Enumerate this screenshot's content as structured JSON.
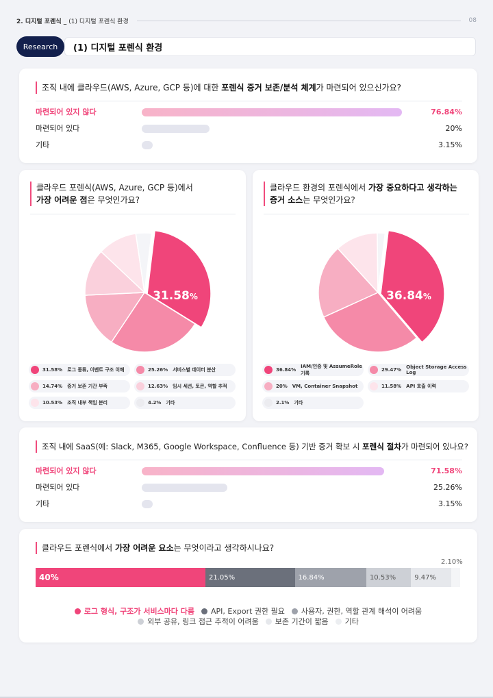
{
  "header": {
    "section": "2. 디지털 포렌식 _",
    "subsection": "(1) 디지털 포렌식 환경",
    "page": "08"
  },
  "title_row": {
    "pill": "Research",
    "title": "(1) 디지털 포렌식 환경"
  },
  "q1": {
    "question_pre": "조직 내에 클라우드(AWS, Azure, GCP 등)에 대한 ",
    "question_bold": "포렌식 증거 보존/분석 체계",
    "question_post": "가 마련되어 있으신가요?",
    "rows": [
      {
        "label": "마련되어 있지 않다",
        "value": 76.84,
        "pct": "76.84%",
        "highlight": true
      },
      {
        "label": "마련되어 있다",
        "value": 20,
        "pct": "20%",
        "highlight": false
      },
      {
        "label": "기타",
        "value": 3.15,
        "pct": "3.15%",
        "highlight": false
      }
    ]
  },
  "q2": {
    "line1": "클라우드 포렌식(AWS, Azure, GCP 등)에서",
    "line2_bold": "가장 어려운 점",
    "line2_post": "은 무엇인가요?",
    "center_value": "31.58",
    "center_unit": "%",
    "slices": [
      {
        "label": "로그 종류, 이벤트 구조 이해",
        "value": 31.58,
        "pct": "31.58%",
        "color": "#f0457a"
      },
      {
        "label": "서비스별 데이터 분산",
        "value": 25.26,
        "pct": "25.26%",
        "color": "#f58aa8"
      },
      {
        "label": "증거 보존 기간 부족",
        "value": 14.74,
        "pct": "14.74%",
        "color": "#f7aec2"
      },
      {
        "label": "임시 세션, 토큰, 역할 추적",
        "value": 12.63,
        "pct": "12.63%",
        "color": "#fad0dc"
      },
      {
        "label": "조직 내부 책임 분리",
        "value": 10.53,
        "pct": "10.53%",
        "color": "#fde4eb"
      },
      {
        "label": "기타",
        "value": 4.2,
        "pct": "4.2%",
        "color": "#f4f5f8"
      }
    ]
  },
  "q3": {
    "line1_pre": "클라우드 환경의 포렌식에서 ",
    "line1_bold": "가장 중요하다고 생각하는",
    "line2_bold": "증거 소스",
    "line2_post": "는 무엇인가요?",
    "center_value": "36.84",
    "center_unit": "%",
    "slices": [
      {
        "label": "IAM/인증 및 AssumeRole 기록",
        "value": 36.84,
        "pct": "36.84%",
        "color": "#f0457a"
      },
      {
        "label": "Object Storage Access Log",
        "value": 29.47,
        "pct": "29.47%",
        "color": "#f58aa8"
      },
      {
        "label": "VM, Container Snapshot",
        "value": 20,
        "pct": "20%",
        "color": "#f7aec2"
      },
      {
        "label": "API 호출 이력",
        "value": 11.58,
        "pct": "11.58%",
        "color": "#fde4eb"
      },
      {
        "label": "기타",
        "value": 2.1,
        "pct": "2.1%",
        "color": "#f4f5f8"
      }
    ]
  },
  "q4": {
    "question_pre": "조직 내에 SaaS(예: Slack, M365, Google Workspace, Confluence 등) 기반 증거 확보 시 ",
    "question_bold": "포렌식 절차",
    "question_post": "가 마련되어 있나요?",
    "rows": [
      {
        "label": "마련되어 있지 않다",
        "value": 71.58,
        "pct": "71.58%",
        "highlight": true
      },
      {
        "label": "마련되어 있다",
        "value": 25.26,
        "pct": "25.26%",
        "highlight": false
      },
      {
        "label": "기타",
        "value": 3.15,
        "pct": "3.15%",
        "highlight": false
      }
    ]
  },
  "q5": {
    "question_pre": "클라우드 포렌식에서 ",
    "question_bold": "가장 어려운 요소",
    "question_post": "는 무엇이라고 생각하시나요?",
    "top_label": "2.10%",
    "segments": [
      {
        "label": "로그 형식, 구조가 서비스마다 다름",
        "value": 40,
        "pct": "40%",
        "color": "#f0457a"
      },
      {
        "label": "API, Export 권한 필요",
        "value": 21.05,
        "pct": "21.05%",
        "color": "#6b707b"
      },
      {
        "label": "사용자, 권한, 역할 관계 해석이 어려움",
        "value": 16.84,
        "pct": "16.84%",
        "color": "#9ea2ab"
      },
      {
        "label": "외부 공유, 링크 접근 추적이 어려움",
        "value": 10.53,
        "pct": "10.53%",
        "color": "#cdd0d6"
      },
      {
        "label": "보존 기간이 짧음",
        "value": 9.47,
        "pct": "9.47%",
        "color": "#e6e8ec"
      },
      {
        "label": "기타",
        "value": 2.1,
        "pct": "",
        "color": "#f4f5f7"
      }
    ]
  },
  "chart_data": [
    {
      "type": "bar",
      "title": "조직 내에 클라우드(AWS, Azure, GCP 등)에 대한 포렌식 증거 보존/분석 체계가 마련되어 있으신가요?",
      "categories": [
        "마련되어 있지 않다",
        "마련되어 있다",
        "기타"
      ],
      "values": [
        76.84,
        20,
        3.15
      ]
    },
    {
      "type": "pie",
      "title": "클라우드 포렌식(AWS, Azure, GCP 등)에서 가장 어려운 점은 무엇인가요?",
      "categories": [
        "로그 종류, 이벤트 구조 이해",
        "서비스별 데이터 분산",
        "증거 보존 기간 부족",
        "임시 세션, 토큰, 역할 추적",
        "조직 내부 책임 분리",
        "기타"
      ],
      "values": [
        31.58,
        25.26,
        14.74,
        12.63,
        10.53,
        4.2
      ]
    },
    {
      "type": "pie",
      "title": "클라우드 환경의 포렌식에서 가장 중요하다고 생각하는 증거 소스는 무엇인가요?",
      "categories": [
        "IAM/인증 및 AssumeRole 기록",
        "Object Storage Access Log",
        "VM, Container Snapshot",
        "API 호출 이력",
        "기타"
      ],
      "values": [
        36.84,
        29.47,
        20,
        11.58,
        2.1
      ]
    },
    {
      "type": "bar",
      "title": "조직 내에 SaaS(예: Slack, M365, Google Workspace, Confluence 등) 기반 증거 확보 시 포렌식 절차가 마련되어 있나요?",
      "categories": [
        "마련되어 있지 않다",
        "마련되어 있다",
        "기타"
      ],
      "values": [
        71.58,
        25.26,
        3.15
      ]
    },
    {
      "type": "bar",
      "title": "클라우드 포렌식에서 가장 어려운 요소는 무엇이라고 생각하시나요?",
      "categories": [
        "로그 형식, 구조가 서비스마다 다름",
        "API, Export 권한 필요",
        "사용자, 권한, 역할 관계 해석이 어려움",
        "외부 공유, 링크 접근 추적이 어려움",
        "보존 기간이 짧음",
        "기타"
      ],
      "values": [
        40,
        21.05,
        16.84,
        10.53,
        9.47,
        2.1
      ]
    }
  ]
}
